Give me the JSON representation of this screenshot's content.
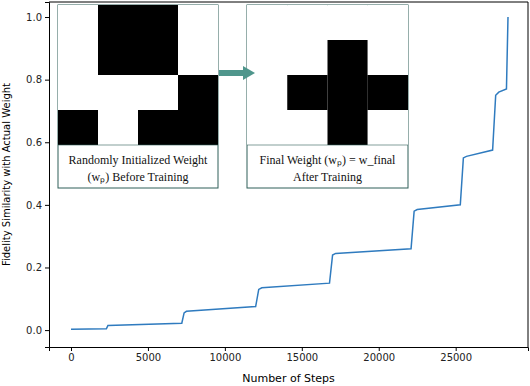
{
  "chart_data": {
    "type": "line",
    "x_label": "Number of Steps",
    "y_label": "Fidelity Similarity with Actual Weight",
    "x": [
      0,
      2300,
      2400,
      7200,
      7350,
      7500,
      12000,
      12200,
      12400,
      16800,
      17000,
      17200,
      22100,
      22300,
      22500,
      25300,
      25500,
      25700,
      27400,
      27600,
      27800,
      28300,
      28400
    ],
    "values": [
      0.003,
      0.004,
      0.015,
      0.022,
      0.055,
      0.06,
      0.075,
      0.13,
      0.135,
      0.15,
      0.24,
      0.245,
      0.26,
      0.38,
      0.385,
      0.4,
      0.55,
      0.555,
      0.575,
      0.75,
      0.76,
      0.77,
      1.0
    ],
    "color": "#2f7bbf",
    "xlim": [
      -1430,
      29700
    ],
    "ylim": [
      -0.054,
      1.048
    ],
    "xticks": [
      0,
      5000,
      10000,
      15000,
      20000,
      25000
    ],
    "yticks": [
      {
        "value": 0,
        "label": "0.0"
      },
      {
        "value": 0.2,
        "label": "0.2"
      },
      {
        "value": 0.4,
        "label": "0.4"
      },
      {
        "value": 0.6,
        "label": "0.6"
      },
      {
        "value": 0.8,
        "label": "0.8"
      },
      {
        "value": 1.0,
        "label": "1.0"
      }
    ],
    "grid": false,
    "insets": [
      {
        "caption": [
          "Randomly Initialized Weight",
          "(wₚ) Before Training"
        ],
        "cells": [
          [
            0,
            1,
            1,
            0
          ],
          [
            0,
            1,
            1,
            0
          ],
          [
            0,
            0,
            0,
            1
          ],
          [
            1,
            0,
            1,
            1
          ]
        ]
      },
      {
        "caption": [
          "Final Weight (wₚ) = w_final",
          "After Training"
        ],
        "cells": [
          [
            0,
            0,
            0,
            0
          ],
          [
            0,
            0,
            1,
            0
          ],
          [
            0,
            1,
            1,
            1
          ],
          [
            0,
            0,
            1,
            0
          ]
        ]
      }
    ]
  }
}
